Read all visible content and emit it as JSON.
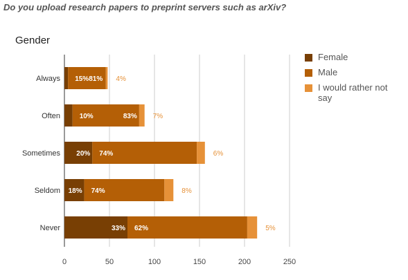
{
  "question": "Do you upload research papers to preprint servers such as arXiv?",
  "chart_data": {
    "type": "bar",
    "orientation": "horizontal",
    "stacked": true,
    "title": "Gender",
    "categories": [
      "Always",
      "Often",
      "Sometimes",
      "Seldom",
      "Never"
    ],
    "series": [
      {
        "name": "Female",
        "color": "#783f04",
        "values": [
          4,
          9,
          31,
          22,
          70
        ],
        "labels": [
          "",
          "",
          "20%",
          "18%",
          "33%"
        ]
      },
      {
        "name": "Male",
        "color": "#b45f06",
        "values": [
          42,
          74,
          116,
          89,
          133
        ],
        "labels": [
          "15%81%",
          "10%",
          "74%",
          "74%",
          "62%"
        ],
        "labels_secondary": [
          "",
          "83%",
          "",
          "",
          ""
        ]
      },
      {
        "name": "I would rather not say",
        "color": "#e69138",
        "values": [
          2,
          6,
          9,
          10,
          11
        ],
        "labels": [
          "4%",
          "7%",
          "6%",
          "8%",
          "5%"
        ]
      }
    ],
    "xlim": [
      0,
      250
    ],
    "xticks": [
      0,
      50,
      100,
      150,
      200,
      250
    ],
    "grid": true,
    "legend_position": "right"
  }
}
